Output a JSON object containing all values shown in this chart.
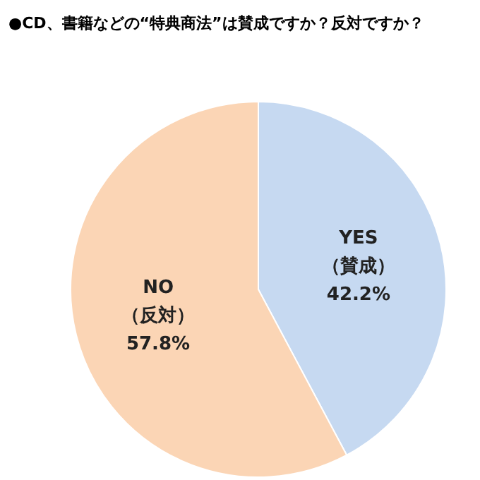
{
  "chart_data": {
    "type": "pie",
    "title": "●CD、書籍などの“特典商法”は賛成ですか？反対ですか？",
    "categories": [
      "YES\n（賛成）",
      "NO\n（反対）"
    ],
    "values": [
      42.2,
      57.8
    ],
    "colors": [
      "#c6d9f1",
      "#fbd5b5"
    ],
    "value_labels": [
      "42.2%",
      "57.8%"
    ]
  }
}
